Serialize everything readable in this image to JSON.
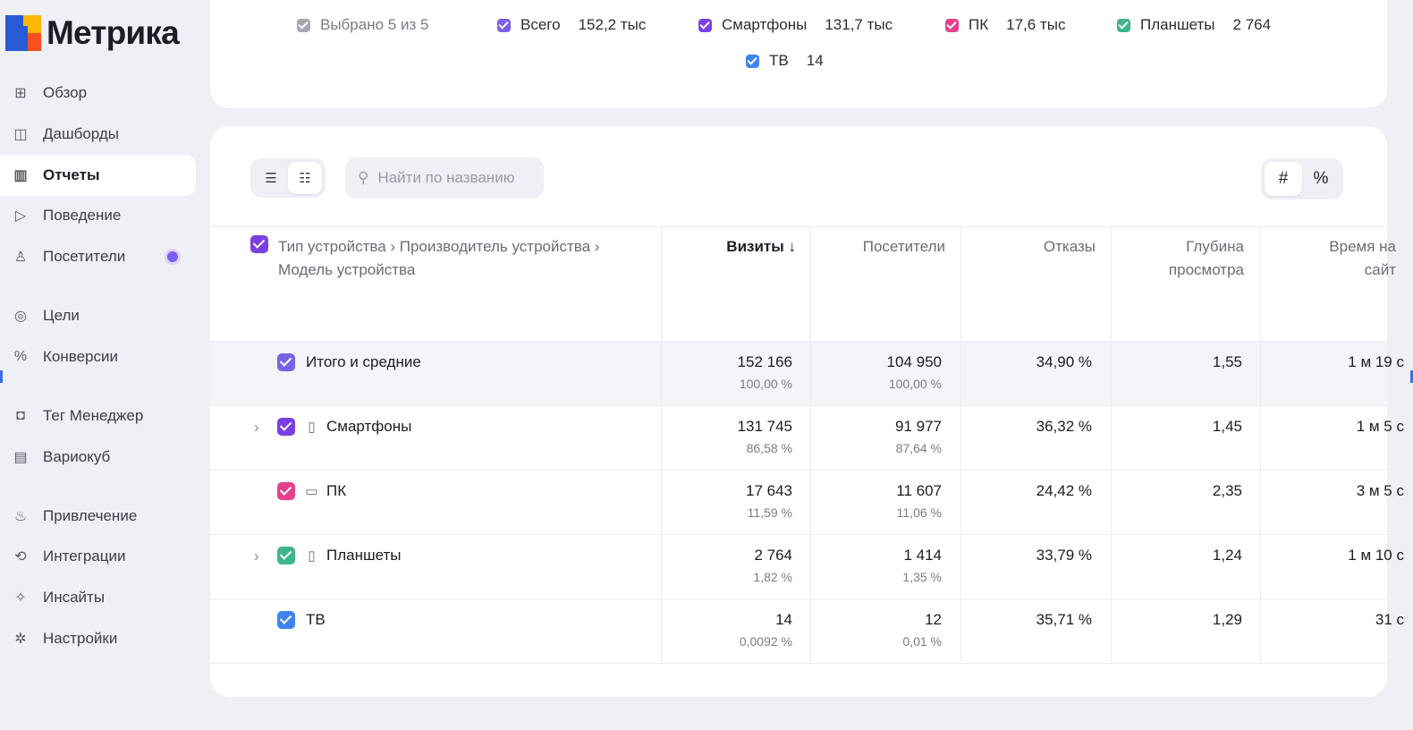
{
  "app": {
    "logo_text": "Метрика"
  },
  "sidebar": {
    "items": [
      {
        "label": "Обзор",
        "icon": "⊞",
        "icon_name": "grid-icon"
      },
      {
        "label": "Дашборды",
        "icon": "◫",
        "icon_name": "dashboard-icon"
      },
      {
        "label": "Отчеты",
        "icon": "▥",
        "icon_name": "bar-chart-icon",
        "active": true
      },
      {
        "label": "Поведение",
        "icon": "▷",
        "icon_name": "play-icon"
      },
      {
        "label": "Посетители",
        "icon": "♙",
        "icon_name": "user-icon",
        "has_dot": true
      },
      {
        "label": "Цели",
        "icon": "◎",
        "icon_name": "target-icon"
      },
      {
        "label": "Конверсии",
        "icon": "%",
        "icon_name": "percent-icon"
      },
      {
        "label": "Тег Менеджер",
        "icon": "◘",
        "icon_name": "tag-manager-icon"
      },
      {
        "label": "Вариокуб",
        "icon": "▤",
        "icon_name": "variocube-icon"
      },
      {
        "label": "Привлечение",
        "icon": "♨",
        "icon_name": "flame-icon"
      },
      {
        "label": "Интеграции",
        "icon": "⟲",
        "icon_name": "integrations-icon"
      },
      {
        "label": "Инсайты",
        "icon": "✧",
        "icon_name": "sparkle-icon"
      },
      {
        "label": "Настройки",
        "icon": "✲",
        "icon_name": "gear-icon"
      }
    ]
  },
  "legend": {
    "selected": {
      "label": "Выбрано 5 из 5",
      "color": "#a4a8b4"
    },
    "items": [
      {
        "label": "Всего",
        "value": "152,2 тыс",
        "color": "#7b61e8"
      },
      {
        "label": "Смартфоны",
        "value": "131,7 тыс",
        "color": "#7b3fe4"
      },
      {
        "label": "ПК",
        "value": "17,6 тыс",
        "color": "#e6408a"
      },
      {
        "label": "Планшеты",
        "value": "2 764",
        "color": "#3fb58a"
      },
      {
        "label": "ТВ",
        "value": "14",
        "color": "#3e84ee"
      }
    ]
  },
  "toolbar": {
    "view_icons": [
      "☰",
      "☷"
    ],
    "search_placeholder": "Найти по названию",
    "search_value": "",
    "search_icon": "⚲",
    "format_hash": "#",
    "format_percent": "%"
  },
  "table": {
    "dimension_header": "Тип устройства › Производитель устройства › Модель устройства",
    "header_checkbox_color": "#7b3fe4",
    "columns": [
      {
        "label": "Визиты ↓",
        "sorted": true
      },
      {
        "label": "Посетители"
      },
      {
        "label": "Отказы"
      },
      {
        "label": "Глубина просмотра"
      },
      {
        "label": "Время на сайт"
      }
    ],
    "total": {
      "label": "Итого и средние",
      "color": "#7b61e8",
      "visits": "152 166",
      "visits_pct": "100,00 %",
      "visitors": "104 950",
      "visitors_pct": "100,00 %",
      "bounce": "34,90 %",
      "depth": "1,55",
      "time": "1 м 19 с"
    },
    "rows": [
      {
        "label": "Смартфоны",
        "color": "#7b3fe4",
        "expandable": true,
        "device_icon": "▯",
        "device_icon_name": "smartphone-icon",
        "visits": "131 745",
        "visits_pct": "86,58 %",
        "visitors": "91 977",
        "visitors_pct": "87,64 %",
        "bounce": "36,32 %",
        "depth": "1,45",
        "time": "1 м 5 с"
      },
      {
        "label": "ПК",
        "color": "#e6408a",
        "expandable": false,
        "device_icon": "▭",
        "device_icon_name": "desktop-icon",
        "visits": "17 643",
        "visits_pct": "11,59 %",
        "visitors": "11 607",
        "visitors_pct": "11,06 %",
        "bounce": "24,42 %",
        "depth": "2,35",
        "time": "3 м 5 с"
      },
      {
        "label": "Планшеты",
        "color": "#3fb58a",
        "expandable": true,
        "device_icon": "▯",
        "device_icon_name": "tablet-icon",
        "visits": "2 764",
        "visits_pct": "1,82 %",
        "visitors": "1 414",
        "visitors_pct": "1,35 %",
        "bounce": "33,79 %",
        "depth": "1,24",
        "time": "1 м 10 с"
      },
      {
        "label": "ТВ",
        "color": "#3e84ee",
        "expandable": false,
        "visits": "14",
        "visits_pct": "0,0092 %",
        "visitors": "12",
        "visitors_pct": "0,01 %",
        "bounce": "35,71 %",
        "depth": "1,29",
        "time": "31 с"
      }
    ]
  }
}
